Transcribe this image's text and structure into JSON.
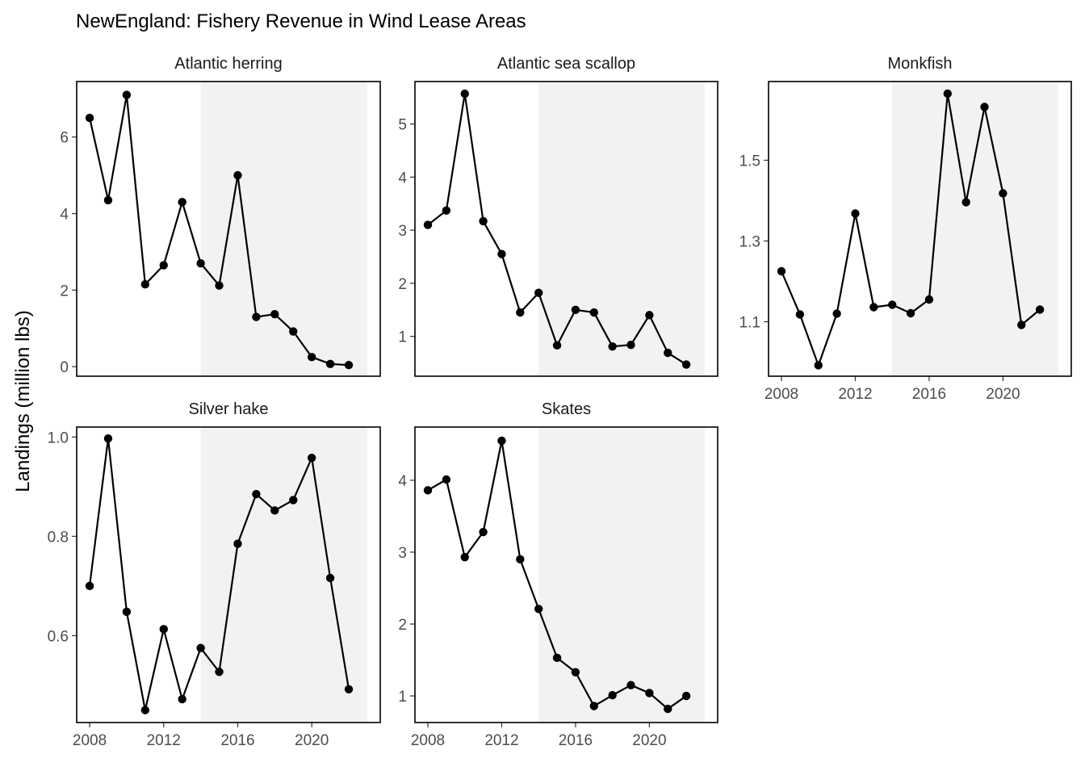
{
  "chart_data": {
    "type": "line",
    "title": "NewEngland: Fishery Revenue in Wind Lease Areas",
    "ylabel": "Landings (million lbs)",
    "x": [
      2008,
      2009,
      2010,
      2011,
      2012,
      2013,
      2014,
      2015,
      2016,
      2017,
      2018,
      2019,
      2020,
      2021,
      2022
    ],
    "x_ticks": [
      2008,
      2012,
      2016,
      2020
    ],
    "xlim": [
      2007.3,
      2023.7
    ],
    "shaded_region": [
      2014,
      2023
    ],
    "colors": {
      "line": "#000000",
      "point": "#000000",
      "shade": "#f2f2f2",
      "border": "#000000"
    },
    "panels": [
      {
        "name": "Atlantic herring",
        "values": [
          6.5,
          4.35,
          7.1,
          2.15,
          2.65,
          4.3,
          2.7,
          2.12,
          5.0,
          1.3,
          1.37,
          0.92,
          0.25,
          0.07,
          0.04
        ],
        "ylim": [
          -0.25,
          7.45
        ],
        "y_ticks": [
          0,
          2,
          4,
          6
        ],
        "y_tick_labels": [
          "0",
          "2",
          "4",
          "6"
        ],
        "show_x_axis": false
      },
      {
        "name": "Atlantic sea scallop",
        "values": [
          3.1,
          3.37,
          5.57,
          3.17,
          2.55,
          1.45,
          1.82,
          0.83,
          1.5,
          1.45,
          0.81,
          0.84,
          1.4,
          0.69,
          0.47
        ],
        "ylim": [
          0.25,
          5.8
        ],
        "y_ticks": [
          1,
          2,
          3,
          4,
          5
        ],
        "y_tick_labels": [
          "1",
          "2",
          "3",
          "4",
          "5"
        ],
        "show_x_axis": false
      },
      {
        "name": "Monkfish",
        "values": [
          1.225,
          1.118,
          0.992,
          1.12,
          1.368,
          1.136,
          1.142,
          1.121,
          1.155,
          1.665,
          1.396,
          1.632,
          1.418,
          1.092,
          1.13
        ],
        "ylim": [
          0.965,
          1.695
        ],
        "y_ticks": [
          1.1,
          1.3,
          1.5
        ],
        "y_tick_labels": [
          "1.1",
          "1.3",
          "1.5"
        ],
        "show_x_axis": true
      },
      {
        "name": "Silver hake",
        "values": [
          0.7,
          0.997,
          0.648,
          0.45,
          0.613,
          0.472,
          0.575,
          0.527,
          0.785,
          0.885,
          0.852,
          0.873,
          0.958,
          0.716,
          0.492
        ],
        "ylim": [
          0.425,
          1.02
        ],
        "y_ticks": [
          0.6,
          0.8,
          1.0
        ],
        "y_tick_labels": [
          "0.6",
          "0.8",
          "1.0"
        ],
        "show_x_axis": true
      },
      {
        "name": "Skates",
        "values": [
          3.86,
          4.01,
          2.93,
          3.28,
          4.55,
          2.9,
          2.21,
          1.53,
          1.33,
          0.86,
          1.01,
          1.15,
          1.04,
          0.82,
          1.0
        ],
        "ylim": [
          0.63,
          4.74
        ],
        "y_ticks": [
          1,
          2,
          3,
          4
        ],
        "y_tick_labels": [
          "1",
          "2",
          "3",
          "4"
        ],
        "show_x_axis": true
      }
    ]
  }
}
